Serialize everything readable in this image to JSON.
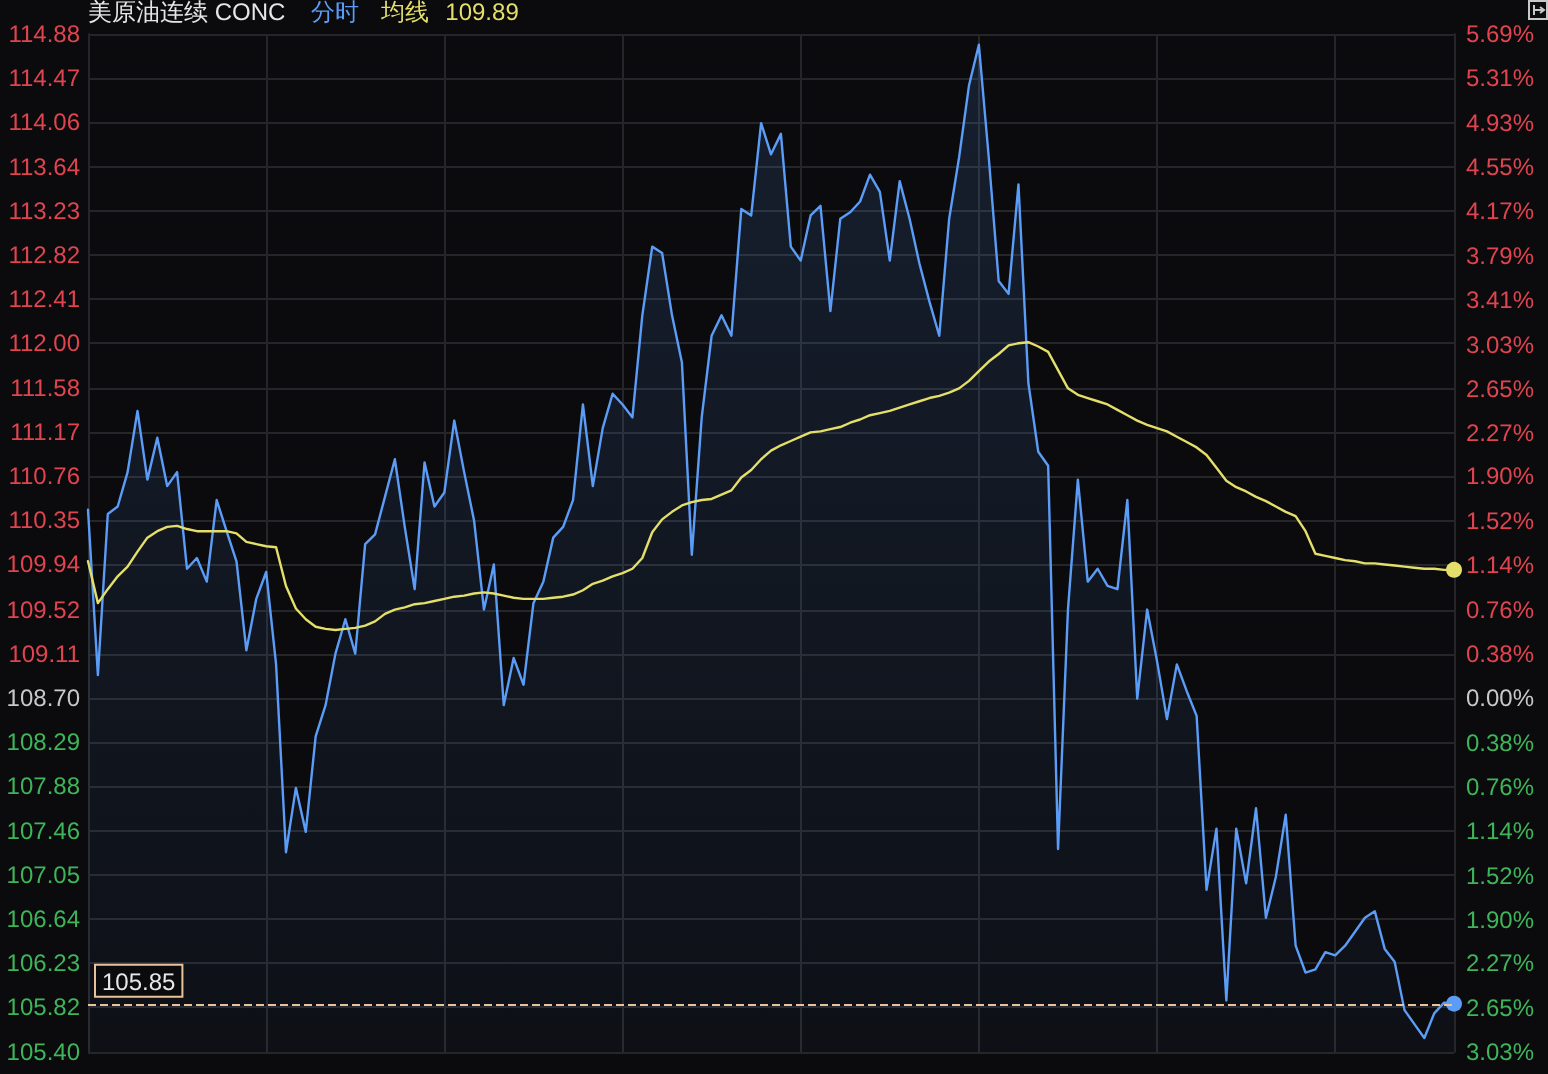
{
  "chart_data": {
    "type": "line",
    "title": "美原油连续 CONC",
    "categories": [
      null,
      null,
      null,
      null,
      null,
      null,
      null,
      null,
      null,
      null,
      null,
      null,
      null,
      null,
      null,
      null,
      null,
      null,
      null,
      null,
      null,
      null,
      null,
      null,
      null,
      null,
      null,
      null,
      null,
      null,
      null,
      null,
      null,
      null,
      null,
      null,
      null,
      null,
      null,
      null,
      null,
      null,
      null,
      null,
      null,
      null,
      null,
      null,
      null,
      null,
      null,
      null,
      null,
      null,
      null,
      null,
      null,
      null,
      null,
      null,
      null,
      null,
      null,
      null,
      null,
      null,
      null,
      null,
      null,
      null,
      null,
      null,
      null,
      null,
      null,
      null,
      null,
      null,
      null,
      null,
      null,
      null,
      null,
      null,
      null,
      null,
      null,
      null,
      null,
      null,
      null,
      null,
      null,
      null,
      null,
      null,
      null,
      null,
      null,
      null,
      null,
      null,
      null,
      null,
      null,
      null,
      null,
      null,
      null,
      null,
      null,
      null,
      null,
      null,
      null,
      null,
      null,
      null,
      null,
      null,
      null,
      null,
      null,
      null,
      null,
      null,
      null,
      null,
      null,
      null,
      null,
      null,
      null,
      null,
      null,
      null,
      null,
      null,
      null
    ],
    "series": [
      {
        "name": "分时",
        "type": "area",
        "color": "#5b9cf6",
        "values": [
          110.45,
          108.91,
          110.41,
          110.48,
          110.8,
          111.37,
          110.73,
          111.12,
          110.67,
          110.8,
          109.9,
          110.0,
          109.78,
          110.54,
          110.25,
          109.97,
          109.14,
          109.62,
          109.87,
          109.01,
          107.26,
          107.86,
          107.45,
          108.34,
          108.63,
          109.11,
          109.43,
          109.11,
          110.13,
          110.22,
          110.57,
          110.92,
          110.29,
          109.71,
          110.89,
          110.48,
          110.61,
          111.28,
          110.8,
          110.35,
          109.52,
          109.94,
          108.63,
          109.07,
          108.82,
          109.58,
          109.78,
          110.19,
          110.29,
          110.54,
          111.43,
          110.67,
          111.21,
          111.53,
          111.43,
          111.31,
          112.26,
          112.9,
          112.84,
          112.26,
          111.82,
          110.03,
          111.31,
          112.07,
          112.26,
          112.07,
          113.25,
          113.19,
          114.05,
          113.76,
          113.95,
          112.9,
          112.77,
          113.19,
          113.28,
          112.3,
          113.16,
          113.22,
          113.32,
          113.57,
          113.41,
          112.77,
          113.51,
          113.16,
          112.74,
          112.39,
          112.07,
          113.16,
          113.73,
          114.4,
          114.78,
          113.73,
          112.58,
          112.46,
          113.48,
          111.63,
          110.99,
          110.86,
          107.29,
          109.52,
          110.73,
          109.78,
          109.9,
          109.74,
          109.71,
          110.54,
          108.69,
          109.52,
          109.04,
          108.5,
          109.01,
          108.76,
          108.53,
          106.91,
          107.48,
          105.88,
          107.48,
          106.97,
          107.67,
          106.65,
          107.03,
          107.61,
          106.39,
          106.14,
          106.17,
          106.33,
          106.3,
          106.39,
          106.52,
          106.65,
          106.71,
          106.36,
          106.24,
          105.79,
          105.66,
          105.53,
          105.76,
          105.86,
          105.85
        ]
      },
      {
        "name": "均线",
        "type": "line",
        "color": "#e4df6a",
        "values": [
          109.97,
          109.58,
          109.71,
          109.83,
          109.92,
          110.06,
          110.19,
          110.25,
          110.29,
          110.3,
          110.27,
          110.25,
          110.25,
          110.25,
          110.25,
          110.23,
          110.15,
          110.13,
          110.11,
          110.1,
          109.74,
          109.53,
          109.43,
          109.36,
          109.34,
          109.33,
          109.34,
          109.35,
          109.37,
          109.41,
          109.48,
          109.52,
          109.54,
          109.57,
          109.58,
          109.6,
          109.62,
          109.64,
          109.65,
          109.67,
          109.68,
          109.67,
          109.65,
          109.63,
          109.62,
          109.62,
          109.62,
          109.63,
          109.64,
          109.66,
          109.7,
          109.76,
          109.79,
          109.83,
          109.86,
          109.9,
          110.0,
          110.24,
          110.36,
          110.43,
          110.49,
          110.52,
          110.54,
          110.55,
          110.59,
          110.63,
          110.75,
          110.82,
          110.92,
          111.0,
          111.05,
          111.09,
          111.13,
          111.17,
          111.18,
          111.2,
          111.22,
          111.26,
          111.29,
          111.33,
          111.35,
          111.37,
          111.4,
          111.43,
          111.46,
          111.49,
          111.51,
          111.54,
          111.58,
          111.65,
          111.74,
          111.83,
          111.9,
          111.98,
          112.0,
          112.01,
          111.97,
          111.92,
          111.75,
          111.58,
          111.52,
          111.49,
          111.46,
          111.43,
          111.38,
          111.33,
          111.28,
          111.24,
          111.21,
          111.18,
          111.13,
          111.08,
          111.03,
          110.96,
          110.84,
          110.72,
          110.66,
          110.62,
          110.57,
          110.53,
          110.48,
          110.43,
          110.39,
          110.25,
          110.04,
          110.02,
          110.0,
          109.98,
          109.97,
          109.95,
          109.95,
          109.94,
          109.93,
          109.92,
          109.91,
          109.9,
          109.9,
          109.89,
          109.89
        ]
      }
    ],
    "ylim": [
      105.4,
      114.88
    ],
    "yticks": [
      114.88,
      114.47,
      114.06,
      113.64,
      113.23,
      112.82,
      112.41,
      {
        "value": 112,
        "label": "112.00"
      },
      111.58,
      111.17,
      110.76,
      110.35,
      109.94,
      109.52,
      109.11,
      {
        "value": 108.7,
        "label": "108.70"
      },
      108.29,
      107.88,
      107.46,
      107.05,
      106.64,
      106.23,
      105.82,
      {
        "value": 105.4,
        "label": "105.40"
      }
    ],
    "y2lim": [
      -3.03,
      5.69
    ],
    "y2ticks": [
      {
        "value": 5.69,
        "label": "5.69%"
      },
      {
        "value": 5.31,
        "label": "5.31%"
      },
      {
        "value": 4.93,
        "label": "4.93%"
      },
      {
        "value": 4.55,
        "label": "4.55%"
      },
      {
        "value": 4.17,
        "label": "4.17%"
      },
      {
        "value": 3.79,
        "label": "3.79%"
      },
      {
        "value": 3.41,
        "label": "3.41%"
      },
      {
        "value": 3.03,
        "label": "3.03%"
      },
      {
        "value": 2.65,
        "label": "2.65%"
      },
      {
        "value": 2.27,
        "label": "2.27%"
      },
      {
        "value": 1.9,
        "label": "1.90%"
      },
      {
        "value": 1.52,
        "label": "1.52%"
      },
      {
        "value": 1.14,
        "label": "1.14%"
      },
      {
        "value": 0.76,
        "label": "0.76%"
      },
      {
        "value": 0.38,
        "label": "0.38%"
      },
      {
        "value": 0,
        "label": "0.00%"
      },
      {
        "value": -0.38,
        "label": "0.38%"
      },
      {
        "value": -0.76,
        "label": "0.76%"
      },
      {
        "value": -1.14,
        "label": "1.14%"
      },
      {
        "value": -1.52,
        "label": "1.52%"
      },
      {
        "value": -1.9,
        "label": "1.90%"
      },
      {
        "value": -2.27,
        "label": "2.27%"
      },
      {
        "value": -2.65,
        "label": "2.65%"
      },
      {
        "value": -3.03,
        "label": "3.03%"
      }
    ],
    "ref_lines": [
      {
        "axis": "y",
        "value": 105.85,
        "label": "105.85",
        "color": "#e8c39a",
        "line_style": "dashed"
      }
    ],
    "annotations": [
      "109.89"
    ],
    "grid": true,
    "legend": "top left"
  }
}
